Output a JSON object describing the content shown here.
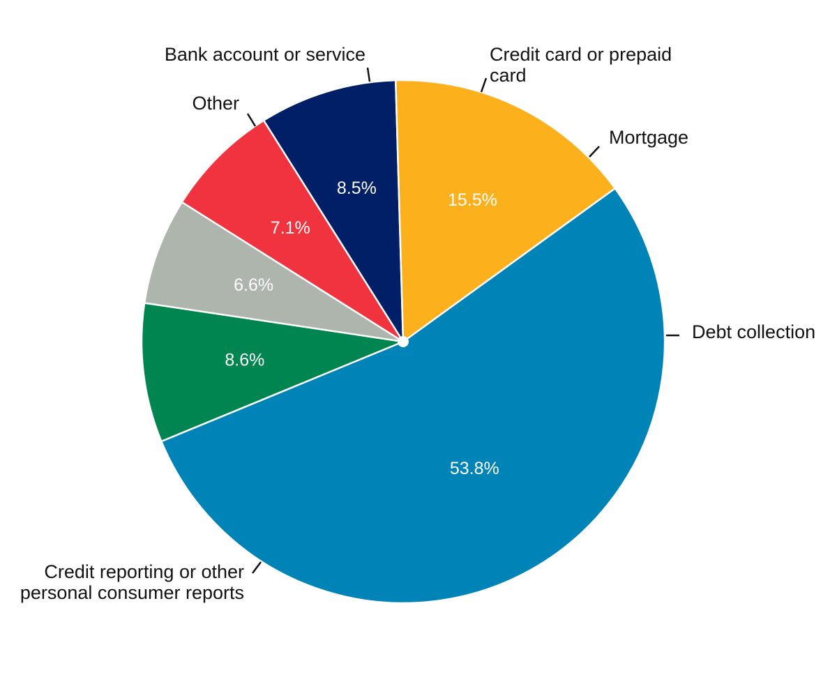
{
  "chart_data": {
    "type": "pie",
    "unit": "%",
    "slices": [
      {
        "label": "Credit reporting or other personal consumer reports",
        "value": 53.8,
        "value_label": "53.8%",
        "color": "#0083b6"
      },
      {
        "label": "Other",
        "value": 8.6,
        "value_label": "8.6%",
        "color": "#008550"
      },
      {
        "label": "Bank account or service",
        "value": 6.6,
        "value_label": "6.6%",
        "color": "#adb5ac"
      },
      {
        "label": "Credit card or prepaid card",
        "value": 7.1,
        "value_label": "7.1%",
        "color": "#f1333f"
      },
      {
        "label": "Mortgage",
        "value": 8.5,
        "value_label": "8.5%",
        "color": "#001f66"
      },
      {
        "label": "Debt collection",
        "value": 15.5,
        "value_label": "15.5%",
        "color": "#fbb01c"
      }
    ],
    "slice_border_color": "#ffffff",
    "center_dot_color": "#ffffff",
    "leader_line_color": "#111111"
  }
}
